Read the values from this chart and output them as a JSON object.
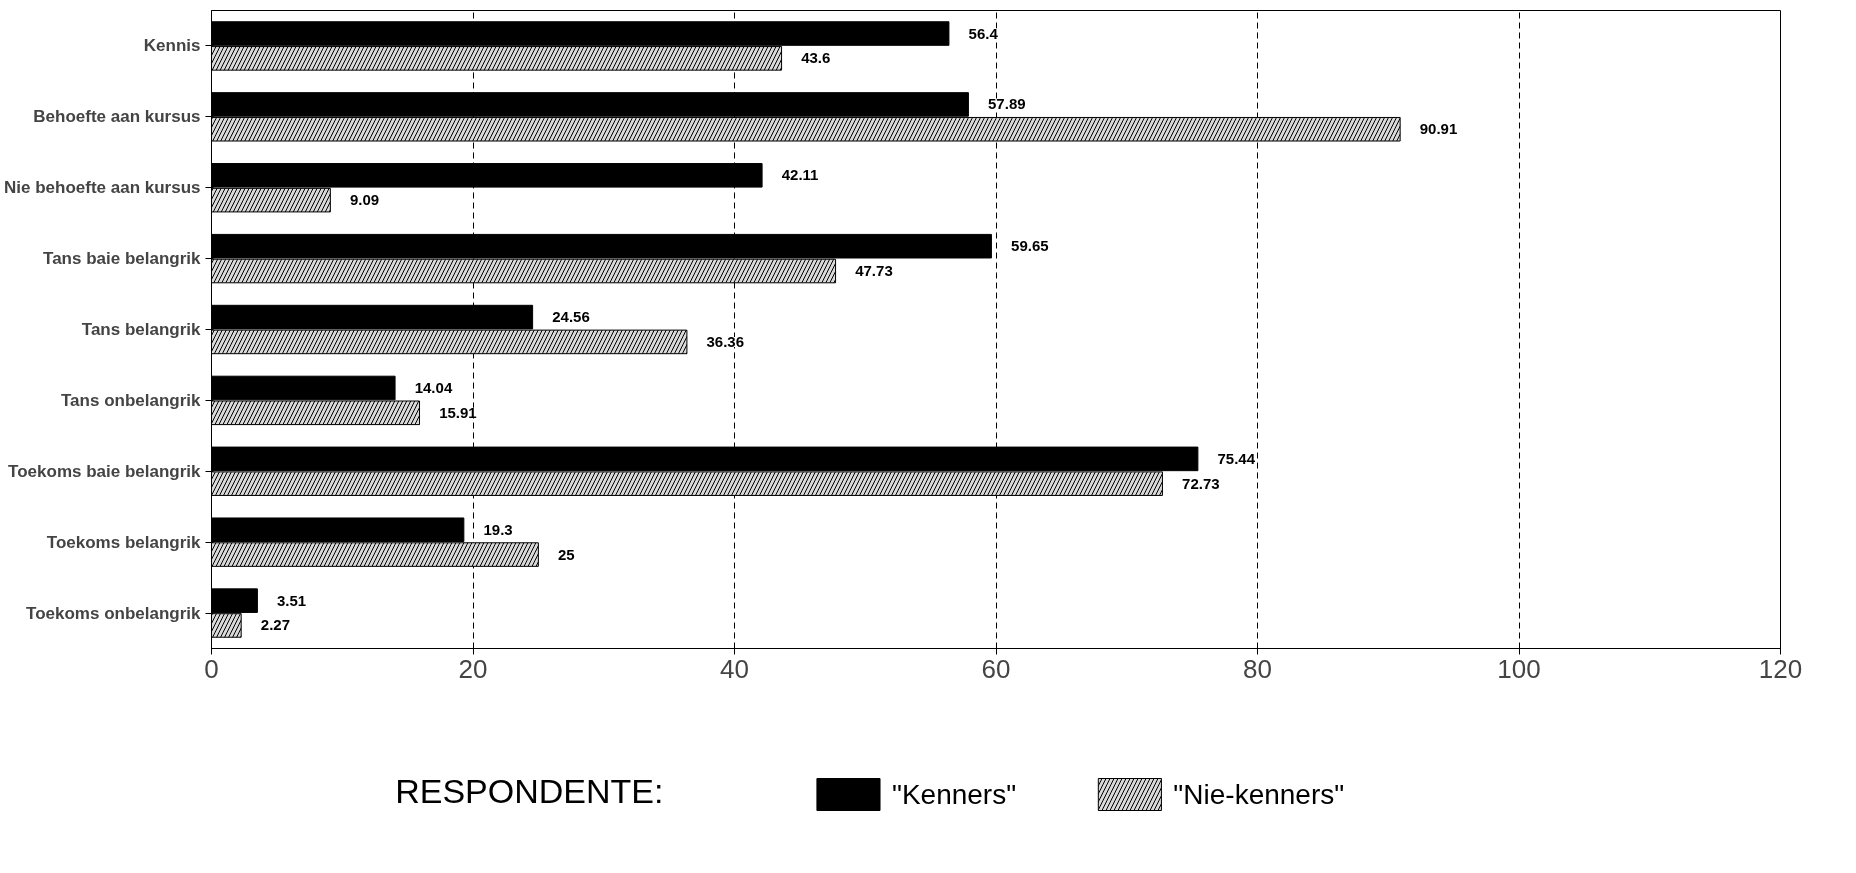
{
  "chart_data": {
    "type": "bar",
    "orientation": "horizontal",
    "categories": [
      "Kennis",
      "Behoefte aan kursus",
      "Nie behoefte aan kursus",
      "Tans baie belangrik",
      "Tans belangrik",
      "Tans onbelangrik",
      "Toekoms baie belangrik",
      "Toekoms belangrik",
      "Toekoms onbelangrik"
    ],
    "series": [
      {
        "name": "\"Kenners\"",
        "color": "#000000",
        "values": [
          56.4,
          57.89,
          42.11,
          59.65,
          24.56,
          14.04,
          75.44,
          19.3,
          3.51
        ]
      },
      {
        "name": "\"Nie-kenners\"",
        "color": "#d9d9d9",
        "values": [
          43.6,
          90.91,
          9.09,
          47.73,
          36.36,
          15.91,
          72.73,
          25,
          2.27
        ]
      }
    ],
    "xlim": [
      0,
      120
    ],
    "xticks": [
      0,
      20,
      40,
      60,
      80,
      100,
      120
    ],
    "grid": "x",
    "data_labels": true,
    "legend": "bottom",
    "legend_title": "RESPONDENTE:"
  }
}
